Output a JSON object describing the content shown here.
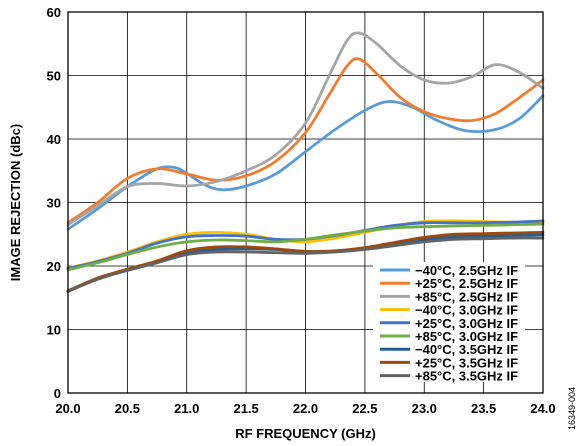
{
  "figure_id": "16349-004",
  "chart_data": {
    "type": "line",
    "xlabel": "RF FREQUENCY (GHz)",
    "ylabel": "IMAGE REJECTION (dBc)",
    "xlim": [
      20.0,
      24.0
    ],
    "ylim": [
      0,
      60
    ],
    "x_ticks": [
      "20.0",
      "20.5",
      "21.0",
      "21.5",
      "22.0",
      "22.5",
      "23.0",
      "23.5",
      "24.0"
    ],
    "y_ticks": [
      "0",
      "10",
      "20",
      "30",
      "40",
      "50",
      "60"
    ],
    "grid": true,
    "legend_position": "bottom-right",
    "series": [
      {
        "name": "−40°C, 2.5GHz IF",
        "color": "#5b9bd5",
        "points": [
          [
            20.0,
            25.8
          ],
          [
            20.25,
            29.0
          ],
          [
            20.5,
            32.5
          ],
          [
            20.75,
            35.3
          ],
          [
            20.9,
            35.5
          ],
          [
            21.0,
            34.6
          ],
          [
            21.15,
            32.8
          ],
          [
            21.3,
            32.0
          ],
          [
            21.5,
            32.6
          ],
          [
            21.75,
            34.5
          ],
          [
            22.0,
            38.0
          ],
          [
            22.25,
            41.5
          ],
          [
            22.5,
            44.5
          ],
          [
            22.7,
            45.9
          ],
          [
            22.9,
            45.0
          ],
          [
            23.1,
            43.0
          ],
          [
            23.35,
            41.3
          ],
          [
            23.6,
            41.5
          ],
          [
            23.8,
            43.2
          ],
          [
            24.0,
            46.8
          ]
        ]
      },
      {
        "name": "+25°C, 2.5GHz IF",
        "color": "#ed7d31",
        "points": [
          [
            20.0,
            26.8
          ],
          [
            20.25,
            30.0
          ],
          [
            20.5,
            33.8
          ],
          [
            20.75,
            35.3
          ],
          [
            21.0,
            34.5
          ],
          [
            21.25,
            33.5
          ],
          [
            21.5,
            34.2
          ],
          [
            21.75,
            36.5
          ],
          [
            22.0,
            41.0
          ],
          [
            22.2,
            47.0
          ],
          [
            22.35,
            51.5
          ],
          [
            22.45,
            52.6
          ],
          [
            22.6,
            50.3
          ],
          [
            22.8,
            46.5
          ],
          [
            23.0,
            44.3
          ],
          [
            23.2,
            43.2
          ],
          [
            23.4,
            42.9
          ],
          [
            23.6,
            44.0
          ],
          [
            23.8,
            46.5
          ],
          [
            24.0,
            49.3
          ]
        ]
      },
      {
        "name": "+85°C, 2.5GHz IF",
        "color": "#a5a5a5",
        "points": [
          [
            20.0,
            26.5
          ],
          [
            20.25,
            29.5
          ],
          [
            20.5,
            32.5
          ],
          [
            20.75,
            33.0
          ],
          [
            21.0,
            32.6
          ],
          [
            21.25,
            33.3
          ],
          [
            21.5,
            35.0
          ],
          [
            21.75,
            37.5
          ],
          [
            22.0,
            42.5
          ],
          [
            22.2,
            50.0
          ],
          [
            22.35,
            55.5
          ],
          [
            22.45,
            56.7
          ],
          [
            22.6,
            55.0
          ],
          [
            22.8,
            51.5
          ],
          [
            23.0,
            49.3
          ],
          [
            23.2,
            48.8
          ],
          [
            23.4,
            49.8
          ],
          [
            23.6,
            51.7
          ],
          [
            23.8,
            50.5
          ],
          [
            24.0,
            48.0
          ]
        ]
      },
      {
        "name": "−40°C, 3.0GHz IF",
        "color": "#ffc000",
        "points": [
          [
            20.0,
            19.7
          ],
          [
            20.25,
            20.8
          ],
          [
            20.5,
            22.2
          ],
          [
            20.75,
            23.8
          ],
          [
            21.0,
            25.0
          ],
          [
            21.25,
            25.3
          ],
          [
            21.5,
            25.0
          ],
          [
            21.75,
            24.2
          ],
          [
            22.0,
            23.8
          ],
          [
            22.25,
            24.4
          ],
          [
            22.5,
            25.3
          ],
          [
            22.75,
            26.3
          ],
          [
            23.0,
            27.0
          ],
          [
            23.25,
            27.1
          ],
          [
            23.5,
            27.0
          ],
          [
            23.75,
            26.9
          ],
          [
            24.0,
            26.9
          ]
        ]
      },
      {
        "name": "+25°C, 3.0GHz IF",
        "color": "#4472c4",
        "points": [
          [
            20.0,
            19.6
          ],
          [
            20.25,
            20.7
          ],
          [
            20.5,
            22.0
          ],
          [
            20.75,
            23.6
          ],
          [
            21.0,
            24.6
          ],
          [
            21.25,
            24.8
          ],
          [
            21.5,
            24.7
          ],
          [
            21.75,
            24.2
          ],
          [
            22.0,
            24.2
          ],
          [
            22.25,
            24.8
          ],
          [
            22.5,
            25.6
          ],
          [
            22.75,
            26.4
          ],
          [
            23.0,
            26.8
          ],
          [
            23.25,
            26.8
          ],
          [
            23.5,
            26.8
          ],
          [
            23.75,
            26.9
          ],
          [
            24.0,
            27.1
          ]
        ]
      },
      {
        "name": "+85°C, 3.0GHz IF",
        "color": "#70ad47",
        "points": [
          [
            20.0,
            19.4
          ],
          [
            20.25,
            20.5
          ],
          [
            20.5,
            21.8
          ],
          [
            20.75,
            23.0
          ],
          [
            21.0,
            23.8
          ],
          [
            21.25,
            24.1
          ],
          [
            21.5,
            24.0
          ],
          [
            21.75,
            23.8
          ],
          [
            22.0,
            24.2
          ],
          [
            22.25,
            24.9
          ],
          [
            22.5,
            25.5
          ],
          [
            22.75,
            26.0
          ],
          [
            23.0,
            26.2
          ],
          [
            23.25,
            26.3
          ],
          [
            23.5,
            26.4
          ],
          [
            23.75,
            26.5
          ],
          [
            24.0,
            26.6
          ]
        ]
      },
      {
        "name": "−40°C, 3.5GHz IF",
        "color": "#255e91",
        "points": [
          [
            20.0,
            16.0
          ],
          [
            20.25,
            18.0
          ],
          [
            20.5,
            19.4
          ],
          [
            20.75,
            20.6
          ],
          [
            21.0,
            22.0
          ],
          [
            21.25,
            22.6
          ],
          [
            21.5,
            22.7
          ],
          [
            21.75,
            22.6
          ],
          [
            22.0,
            22.3
          ],
          [
            22.25,
            22.3
          ],
          [
            22.5,
            22.7
          ],
          [
            22.75,
            23.4
          ],
          [
            23.0,
            24.1
          ],
          [
            23.25,
            24.6
          ],
          [
            23.5,
            24.7
          ],
          [
            23.75,
            24.8
          ],
          [
            24.0,
            24.9
          ]
        ]
      },
      {
        "name": "+25°C, 3.5GHz IF",
        "color": "#9e480e",
        "points": [
          [
            20.0,
            16.1
          ],
          [
            20.25,
            18.1
          ],
          [
            20.5,
            19.5
          ],
          [
            20.75,
            20.8
          ],
          [
            21.0,
            22.4
          ],
          [
            21.25,
            23.0
          ],
          [
            21.5,
            23.0
          ],
          [
            21.75,
            22.7
          ],
          [
            22.0,
            22.3
          ],
          [
            22.25,
            22.4
          ],
          [
            22.5,
            22.9
          ],
          [
            22.75,
            23.7
          ],
          [
            23.0,
            24.5
          ],
          [
            23.25,
            25.0
          ],
          [
            23.5,
            25.1
          ],
          [
            23.75,
            25.2
          ],
          [
            24.0,
            25.3
          ]
        ]
      },
      {
        "name": "+85°C, 3.5GHz IF",
        "color": "#636363",
        "points": [
          [
            20.0,
            16.0
          ],
          [
            20.25,
            17.9
          ],
          [
            20.5,
            19.3
          ],
          [
            20.75,
            20.5
          ],
          [
            21.0,
            21.8
          ],
          [
            21.25,
            22.2
          ],
          [
            21.5,
            22.2
          ],
          [
            21.75,
            22.1
          ],
          [
            22.0,
            22.0
          ],
          [
            22.25,
            22.2
          ],
          [
            22.5,
            22.6
          ],
          [
            22.75,
            23.2
          ],
          [
            23.0,
            23.8
          ],
          [
            23.25,
            24.2
          ],
          [
            23.5,
            24.3
          ],
          [
            23.75,
            24.4
          ],
          [
            24.0,
            24.4
          ]
        ]
      }
    ]
  }
}
